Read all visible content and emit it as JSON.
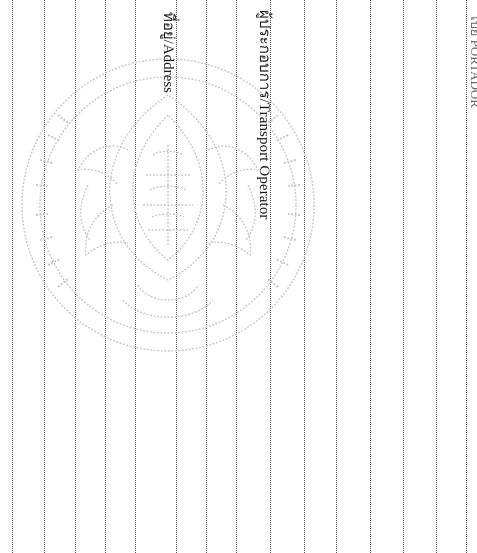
{
  "form": {
    "header_partial": "ไปย่ PORTADOR",
    "transport_operator_label": "ผู้ประกอบการ/Transport Operator",
    "address_label": "ที่อยู่/Address"
  },
  "watermark": {
    "icon": "seal-emblem-icon",
    "color": "#c8c8c8"
  },
  "colors": {
    "rule_color": "#555555",
    "text_color": "#1a1a1a"
  }
}
